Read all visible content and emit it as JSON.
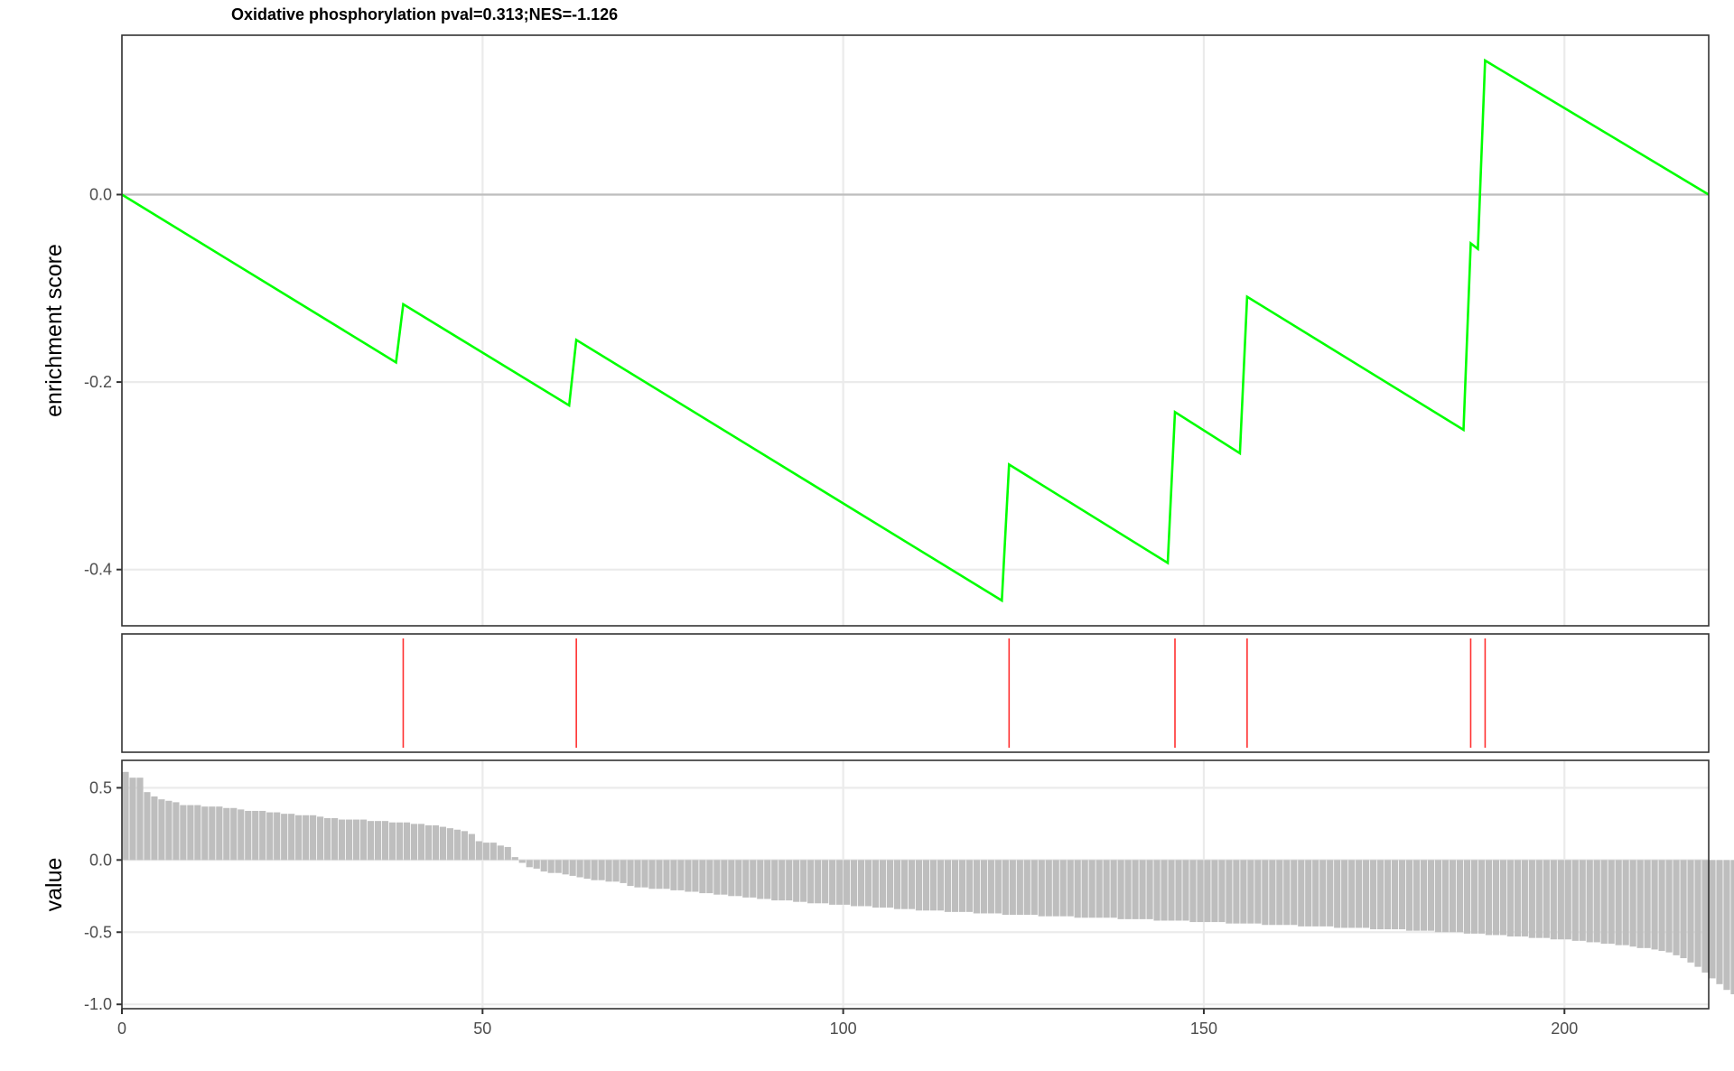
{
  "chart_data": {
    "type": "gsea-enrichment-plot",
    "title": "Oxidative phosphorylation pval=0.313;NES=-1.126",
    "x_range": [
      0,
      220
    ],
    "x_ticks": [
      0,
      50,
      100,
      150,
      200
    ],
    "x_tick_labels": [
      "0",
      "50",
      "100",
      "150",
      "200"
    ],
    "grid": true,
    "panels": {
      "enrichment": {
        "type": "line",
        "ylabel": "enrichment score",
        "ylim": [
          -0.46,
          0.17
        ],
        "y_ticks": [
          0.0,
          -0.2,
          -0.4
        ],
        "y_tick_labels": [
          "0.0",
          "-0.2",
          "-0.4"
        ],
        "zero_line": 0.0,
        "line_color": "#00ff00",
        "points": [
          [
            0,
            0.0
          ],
          [
            38,
            -0.179
          ],
          [
            39,
            -0.117
          ],
          [
            62,
            -0.225
          ],
          [
            63,
            -0.155
          ],
          [
            122,
            -0.433
          ],
          [
            123,
            -0.288
          ],
          [
            145,
            -0.393
          ],
          [
            146,
            -0.232
          ],
          [
            155,
            -0.276
          ],
          [
            156,
            -0.109
          ],
          [
            186,
            -0.251
          ],
          [
            187,
            -0.052
          ],
          [
            188,
            -0.058
          ],
          [
            189,
            0.143
          ],
          [
            220,
            0.0
          ]
        ]
      },
      "hits": {
        "type": "rug",
        "color": "#ff3030",
        "positions": [
          39,
          63,
          123,
          146,
          156,
          187,
          189
        ]
      },
      "ranked": {
        "type": "bar",
        "ylabel": "value",
        "ylim": [
          -1.03,
          0.69
        ],
        "y_ticks": [
          0.5,
          0.0,
          -0.5,
          -1.0
        ],
        "y_tick_labels": [
          "0.5",
          "0.0",
          "-0.5",
          "-1.0"
        ],
        "bar_color": "#bebebe",
        "values": [
          0.61,
          0.57,
          0.57,
          0.47,
          0.44,
          0.42,
          0.41,
          0.4,
          0.38,
          0.38,
          0.38,
          0.37,
          0.37,
          0.37,
          0.36,
          0.36,
          0.35,
          0.34,
          0.34,
          0.34,
          0.33,
          0.33,
          0.32,
          0.32,
          0.31,
          0.31,
          0.31,
          0.3,
          0.29,
          0.29,
          0.28,
          0.28,
          0.28,
          0.28,
          0.27,
          0.27,
          0.27,
          0.26,
          0.26,
          0.26,
          0.25,
          0.25,
          0.24,
          0.24,
          0.23,
          0.22,
          0.21,
          0.2,
          0.18,
          0.13,
          0.12,
          0.12,
          0.1,
          0.09,
          0.02,
          -0.02,
          -0.05,
          -0.06,
          -0.08,
          -0.09,
          -0.09,
          -0.1,
          -0.11,
          -0.12,
          -0.13,
          -0.14,
          -0.14,
          -0.15,
          -0.15,
          -0.16,
          -0.18,
          -0.19,
          -0.19,
          -0.2,
          -0.2,
          -0.2,
          -0.21,
          -0.21,
          -0.22,
          -0.22,
          -0.23,
          -0.23,
          -0.24,
          -0.24,
          -0.25,
          -0.25,
          -0.26,
          -0.26,
          -0.27,
          -0.27,
          -0.28,
          -0.28,
          -0.28,
          -0.29,
          -0.29,
          -0.3,
          -0.3,
          -0.3,
          -0.31,
          -0.31,
          -0.31,
          -0.32,
          -0.32,
          -0.32,
          -0.33,
          -0.33,
          -0.33,
          -0.34,
          -0.34,
          -0.34,
          -0.35,
          -0.35,
          -0.35,
          -0.35,
          -0.36,
          -0.36,
          -0.36,
          -0.36,
          -0.37,
          -0.37,
          -0.37,
          -0.37,
          -0.38,
          -0.38,
          -0.38,
          -0.38,
          -0.38,
          -0.39,
          -0.39,
          -0.39,
          -0.39,
          -0.39,
          -0.4,
          -0.4,
          -0.4,
          -0.4,
          -0.4,
          -0.4,
          -0.41,
          -0.41,
          -0.41,
          -0.41,
          -0.41,
          -0.42,
          -0.42,
          -0.42,
          -0.42,
          -0.42,
          -0.43,
          -0.43,
          -0.43,
          -0.43,
          -0.43,
          -0.44,
          -0.44,
          -0.44,
          -0.44,
          -0.44,
          -0.45,
          -0.45,
          -0.45,
          -0.45,
          -0.45,
          -0.46,
          -0.46,
          -0.46,
          -0.46,
          -0.46,
          -0.47,
          -0.47,
          -0.47,
          -0.47,
          -0.47,
          -0.48,
          -0.48,
          -0.48,
          -0.48,
          -0.48,
          -0.49,
          -0.49,
          -0.49,
          -0.49,
          -0.5,
          -0.5,
          -0.5,
          -0.5,
          -0.51,
          -0.51,
          -0.51,
          -0.52,
          -0.52,
          -0.52,
          -0.53,
          -0.53,
          -0.53,
          -0.54,
          -0.54,
          -0.54,
          -0.55,
          -0.55,
          -0.55,
          -0.56,
          -0.56,
          -0.57,
          -0.57,
          -0.58,
          -0.58,
          -0.59,
          -0.59,
          -0.6,
          -0.61,
          -0.61,
          -0.62,
          -0.63,
          -0.64,
          -0.66,
          -0.68,
          -0.71,
          -0.74,
          -0.78,
          -0.82,
          -0.86,
          -0.9,
          -0.93,
          -0.96,
          -0.99
        ]
      }
    }
  }
}
